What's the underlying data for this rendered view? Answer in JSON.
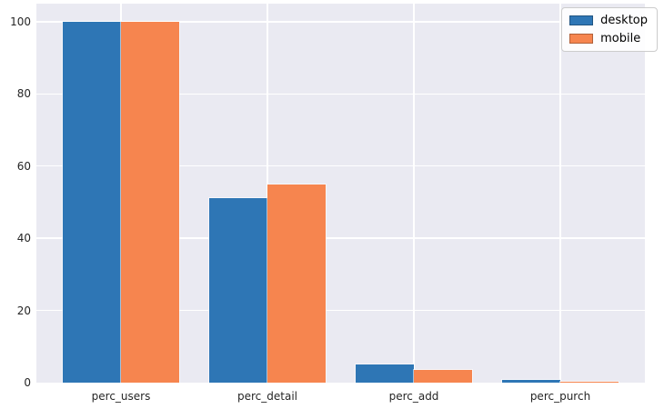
{
  "chart_data": {
    "type": "bar",
    "title": "",
    "xlabel": "",
    "ylabel": "",
    "categories": [
      "perc_users",
      "perc_detail",
      "perc_add",
      "perc_purch"
    ],
    "series": [
      {
        "name": "desktop",
        "color": "#2e76b5",
        "values": [
          100,
          51,
          5,
          0.8
        ]
      },
      {
        "name": "mobile",
        "color": "#f6854f",
        "values": [
          100,
          55,
          3.5,
          0.3
        ]
      }
    ],
    "ylim": [
      0,
      105
    ],
    "yticks": [
      0,
      20,
      40,
      60,
      80,
      100
    ],
    "grid": "both",
    "grid_color": "#ffffff",
    "plot_bg": "#eaeaf2",
    "fig_bg": "#ffffff",
    "tick_color": "#262626",
    "legend": {
      "position": "upper right",
      "items": [
        "desktop",
        "mobile"
      ]
    },
    "style": "seaborn-darkgrid"
  }
}
